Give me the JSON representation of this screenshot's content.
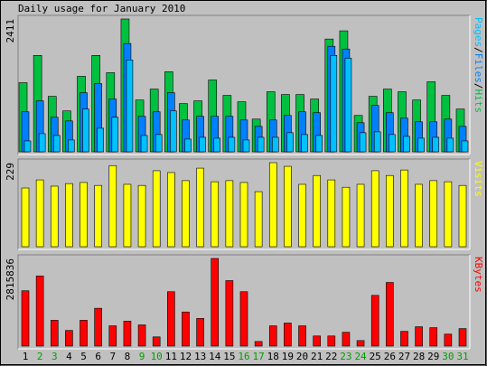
{
  "title": "Daily usage for January 2010",
  "legend_separator": "/",
  "chart_data": [
    {
      "type": "bar",
      "ylim": [
        0,
        2411
      ],
      "yticks": [
        2411
      ],
      "series": [
        {
          "name": "Hits",
          "color": "#00c040",
          "values": [
            1255,
            1750,
            1007,
            743,
            1370,
            1750,
            1436,
            2411,
            941,
            1139,
            1453,
            875,
            925,
            1304,
            1024,
            908,
            594,
            1090,
            1040,
            1040,
            958,
            2047,
            2196,
            660,
            1007,
            1139,
            1090,
            941,
            1271,
            1024,
            776
          ]
        },
        {
          "name": "Files",
          "color": "#0080ff",
          "values": [
            726,
            925,
            627,
            561,
            1073,
            1238,
            958,
            1965,
            644,
            726,
            1073,
            578,
            644,
            644,
            644,
            578,
            462,
            578,
            660,
            726,
            710,
            1915,
            1866,
            528,
            842,
            710,
            611,
            545,
            545,
            594,
            462
          ]
        },
        {
          "name": "Pages",
          "color": "#00c0ff",
          "values": [
            198,
            330,
            297,
            215,
            776,
            429,
            627,
            1668,
            297,
            314,
            743,
            231,
            264,
            248,
            264,
            215,
            264,
            264,
            347,
            314,
            297,
            1750,
            1701,
            347,
            363,
            314,
            281,
            248,
            264,
            248,
            198
          ]
        }
      ],
      "legend_order": [
        2,
        1,
        0
      ]
    },
    {
      "type": "bar",
      "ylim": [
        0,
        229
      ],
      "yticks": [
        229
      ],
      "series": [
        {
          "name": "Visits",
          "color": "#ffff00",
          "values": [
            160,
            182,
            165,
            172,
            175,
            167,
            221,
            170,
            167,
            207,
            202,
            180,
            214,
            177,
            180,
            175,
            150,
            229,
            219,
            170,
            194,
            182,
            162,
            170,
            207,
            194,
            209,
            170,
            180,
            177,
            167
          ]
        }
      ]
    },
    {
      "type": "bar",
      "ylim": [
        0,
        2815836
      ],
      "yticks": [
        2815836
      ],
      "series": [
        {
          "name": "KBytes",
          "color": "#ff0000",
          "values": [
            1778400,
            2252640,
            829920,
            503880,
            829920,
            1215240,
            652080,
            800280,
            681720,
            296400,
            1748760,
            1096680,
            889200,
            2815836,
            2104440,
            1748760,
            148200,
            652080,
            741000,
            652080,
            326040,
            326040,
            444600,
            177840,
            1630200,
            2045160,
            474240,
            622440,
            592800,
            385320,
            563160
          ]
        }
      ],
      "categories": [
        "1",
        "2",
        "3",
        "4",
        "5",
        "6",
        "7",
        "8",
        "9",
        "10",
        "11",
        "12",
        "13",
        "14",
        "15",
        "16",
        "17",
        "18",
        "19",
        "20",
        "21",
        "22",
        "23",
        "24",
        "25",
        "26",
        "27",
        "28",
        "29",
        "30",
        "31"
      ],
      "category_colors": [
        "#000000",
        "#00a000",
        "#00a000",
        "#000000",
        "#000000",
        "#000000",
        "#000000",
        "#000000",
        "#00a000",
        "#00a000",
        "#000000",
        "#000000",
        "#000000",
        "#000000",
        "#000000",
        "#00a000",
        "#00a000",
        "#000000",
        "#000000",
        "#000000",
        "#000000",
        "#000000",
        "#00a000",
        "#00a000",
        "#000000",
        "#000000",
        "#000000",
        "#000000",
        "#000000",
        "#00a000",
        "#00a000"
      ]
    }
  ]
}
